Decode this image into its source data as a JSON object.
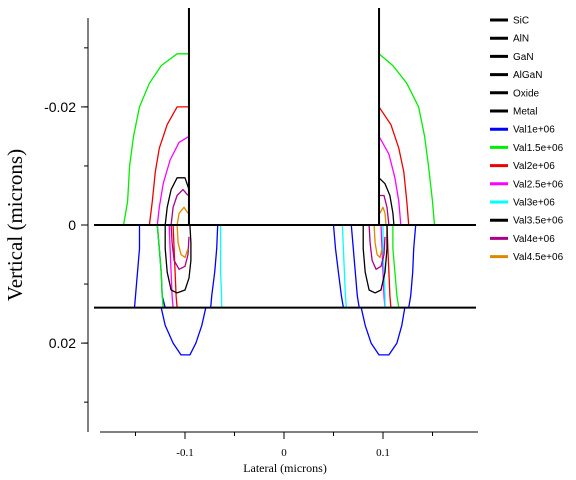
{
  "chart_data": {
    "type": "line",
    "title": "",
    "xlabel": "Lateral (microns)",
    "ylabel": "Vertical (microns)",
    "xlim": [
      -0.2,
      0.2
    ],
    "ylim": [
      -0.035,
      0.032
    ],
    "y_inverted": true,
    "grid": false,
    "legend_position": "right",
    "x_ticks": [
      {
        "v": -0.1,
        "label": "-0.1"
      },
      {
        "v": 0,
        "label": "0"
      },
      {
        "v": 0.1,
        "label": "0.1"
      }
    ],
    "y_ticks": [
      {
        "v": -0.02,
        "label": "-0.02"
      },
      {
        "v": 0,
        "label": "0"
      },
      {
        "v": 0.02,
        "label": "0.02"
      }
    ],
    "material_lines": {
      "horizontal_y": [
        0,
        0.014
      ],
      "metal_x": [
        -0.096,
        0.096
      ],
      "metal_y_top": -0.036
    },
    "legend": [
      {
        "label": "SiC",
        "color": "#000000"
      },
      {
        "label": "AlN",
        "color": "#000000"
      },
      {
        "label": "GaN",
        "color": "#000000"
      },
      {
        "label": "AlGaN",
        "color": "#000000"
      },
      {
        "label": "Oxide",
        "color": "#000000"
      },
      {
        "label": "Metal",
        "color": "#000000"
      },
      {
        "label": "Val1e+06",
        "color": "#0000ff"
      },
      {
        "label": "Val1.5e+06",
        "color": "#00ee00"
      },
      {
        "label": "Val2e+06",
        "color": "#ee0000"
      },
      {
        "label": "Val2.5e+06",
        "color": "#ff00ff"
      },
      {
        "label": "Val3e+06",
        "color": "#00ffff"
      },
      {
        "label": "Val3.5e+06",
        "color": "#000000"
      },
      {
        "label": "Val4e+06",
        "color": "#aa0088"
      },
      {
        "label": "Val4.5e+06",
        "color": "#dd8800"
      }
    ],
    "series": [
      {
        "name": "Val1e+06",
        "color": "#0000ff",
        "width": 1.3,
        "segments": [
          [
            [
              -0.146,
              0.0
            ],
            [
              -0.146,
              0.004
            ],
            [
              -0.148,
              0.008
            ],
            [
              -0.15,
              0.012
            ],
            [
              -0.151,
              0.014
            ]
          ],
          [
            [
              -0.128,
              0.0
            ],
            [
              -0.126,
              0.004
            ],
            [
              -0.124,
              0.008
            ],
            [
              -0.123,
              0.012
            ],
            [
              -0.12,
              0.014
            ]
          ],
          [
            [
              -0.124,
              0.014
            ],
            [
              -0.12,
              0.017
            ],
            [
              -0.112,
              0.02
            ],
            [
              -0.104,
              0.022
            ],
            [
              -0.095,
              0.022
            ],
            [
              -0.089,
              0.02
            ],
            [
              -0.083,
              0.017
            ],
            [
              -0.079,
              0.014
            ]
          ],
          [
            [
              -0.074,
              0.014
            ],
            [
              -0.073,
              0.012
            ],
            [
              -0.07,
              0.008
            ],
            [
              -0.068,
              0.004
            ],
            [
              -0.067,
              0.0
            ]
          ],
          [
            [
              0.05,
              0.0
            ],
            [
              0.052,
              0.004
            ],
            [
              0.055,
              0.008
            ],
            [
              0.058,
              0.012
            ],
            [
              0.06,
              0.014
            ]
          ],
          [
            [
              0.068,
              0.0
            ],
            [
              0.07,
              0.004
            ],
            [
              0.072,
              0.008
            ],
            [
              0.074,
              0.012
            ],
            [
              0.076,
              0.014
            ]
          ],
          [
            [
              0.078,
              0.014
            ],
            [
              0.082,
              0.017
            ],
            [
              0.088,
              0.02
            ],
            [
              0.096,
              0.022
            ],
            [
              0.106,
              0.022
            ],
            [
              0.114,
              0.02
            ],
            [
              0.119,
              0.017
            ],
            [
              0.122,
              0.014
            ]
          ],
          [
            [
              0.126,
              0.014
            ],
            [
              0.128,
              0.012
            ],
            [
              0.13,
              0.008
            ],
            [
              0.131,
              0.004
            ],
            [
              0.133,
              0.0
            ]
          ]
        ]
      },
      {
        "name": "Val1.5e+06",
        "color": "#00ee00",
        "width": 1.3,
        "segments": [
          [
            [
              -0.162,
              0.0
            ],
            [
              -0.158,
              -0.004
            ],
            [
              -0.156,
              -0.01
            ],
            [
              -0.152,
              -0.015
            ],
            [
              -0.146,
              -0.02
            ],
            [
              -0.136,
              -0.024
            ],
            [
              -0.124,
              -0.027
            ],
            [
              -0.108,
              -0.029
            ],
            [
              -0.096,
              -0.029
            ]
          ],
          [
            [
              -0.128,
              0.0
            ],
            [
              -0.126,
              0.004
            ],
            [
              -0.124,
              0.008
            ],
            [
              -0.123,
              0.012
            ],
            [
              -0.122,
              0.014
            ]
          ],
          [
            [
              0.096,
              -0.029
            ],
            [
              0.11,
              -0.027
            ],
            [
              0.124,
              -0.024
            ],
            [
              0.136,
              -0.02
            ],
            [
              0.142,
              -0.015
            ],
            [
              0.146,
              -0.01
            ],
            [
              0.15,
              -0.004
            ],
            [
              0.152,
              0.0
            ]
          ],
          [
            [
              0.11,
              0.0
            ],
            [
              0.11,
              0.004
            ],
            [
              0.112,
              0.008
            ],
            [
              0.114,
              0.012
            ],
            [
              0.116,
              0.014
            ]
          ]
        ]
      },
      {
        "name": "Val2e+06",
        "color": "#ee0000",
        "width": 1.3,
        "segments": [
          [
            [
              -0.136,
              0.0
            ],
            [
              -0.133,
              -0.004
            ],
            [
              -0.13,
              -0.009
            ],
            [
              -0.126,
              -0.013
            ],
            [
              -0.118,
              -0.017
            ],
            [
              -0.108,
              -0.02
            ],
            [
              -0.096,
              -0.02
            ]
          ],
          [
            [
              -0.112,
              0.0
            ],
            [
              -0.111,
              0.004
            ],
            [
              -0.11,
              0.008
            ],
            [
              -0.109,
              0.012
            ],
            [
              -0.108,
              0.014
            ]
          ],
          [
            [
              0.096,
              -0.02
            ],
            [
              0.108,
              -0.017
            ],
            [
              0.116,
              -0.013
            ],
            [
              0.121,
              -0.009
            ],
            [
              0.124,
              -0.004
            ],
            [
              0.126,
              0.0
            ]
          ],
          [
            [
              0.104,
              0.0
            ],
            [
              0.105,
              0.004
            ],
            [
              0.106,
              0.008
            ],
            [
              0.107,
              0.012
            ],
            [
              0.108,
              0.014
            ]
          ]
        ]
      },
      {
        "name": "Val2.5e+06",
        "color": "#ff00ff",
        "width": 1.3,
        "segments": [
          [
            [
              -0.128,
              0.0
            ],
            [
              -0.126,
              -0.003
            ],
            [
              -0.122,
              -0.007
            ],
            [
              -0.115,
              -0.011
            ],
            [
              -0.106,
              -0.014
            ],
            [
              -0.096,
              -0.015
            ]
          ],
          [
            [
              -0.116,
              0.0
            ],
            [
              -0.115,
              0.004
            ],
            [
              -0.114,
              0.008
            ],
            [
              -0.113,
              0.012
            ],
            [
              -0.112,
              0.014
            ]
          ],
          [
            [
              0.096,
              -0.015
            ],
            [
              0.106,
              -0.012
            ],
            [
              0.112,
              -0.008
            ],
            [
              0.116,
              -0.004
            ],
            [
              0.118,
              0.0
            ]
          ],
          [
            [
              0.098,
              0.0
            ],
            [
              0.099,
              0.004
            ],
            [
              0.1,
              0.008
            ],
            [
              0.101,
              0.012
            ],
            [
              0.102,
              0.014
            ]
          ]
        ]
      },
      {
        "name": "Val3e+06",
        "color": "#00ffff",
        "width": 1.3,
        "segments": [
          [
            [
              -0.064,
              0.0
            ],
            [
              -0.064,
              0.004
            ],
            [
              -0.064,
              0.008
            ],
            [
              -0.063,
              0.012
            ],
            [
              -0.063,
              0.014
            ]
          ],
          [
            [
              0.059,
              0.0
            ],
            [
              0.06,
              0.004
            ],
            [
              0.061,
              0.008
            ],
            [
              0.062,
              0.012
            ],
            [
              0.063,
              0.014
            ]
          ],
          [
            [
              0.1,
              0.0
            ],
            [
              0.1,
              0.004
            ],
            [
              0.101,
              0.008
            ],
            [
              0.102,
              0.012
            ],
            [
              0.102,
              0.014
            ]
          ]
        ]
      },
      {
        "name": "Val3.5e+06",
        "color": "#000000",
        "width": 1.3,
        "segments": [
          [
            [
              -0.12,
              0.0
            ],
            [
              -0.118,
              -0.003
            ],
            [
              -0.114,
              -0.006
            ],
            [
              -0.108,
              -0.008
            ],
            [
              -0.1,
              -0.008
            ],
            [
              -0.096,
              -0.006
            ]
          ],
          [
            [
              -0.12,
              0.0
            ],
            [
              -0.12,
              0.004
            ],
            [
              -0.118,
              0.008
            ],
            [
              -0.114,
              0.011
            ],
            [
              -0.108,
              0.0115
            ],
            [
              -0.1,
              0.011
            ],
            [
              -0.096,
              0.009
            ],
            [
              -0.094,
              0.006
            ],
            [
              -0.094,
              0.003
            ],
            [
              -0.095,
              0.0
            ]
          ],
          [
            [
              0.096,
              -0.008
            ],
            [
              0.102,
              -0.007
            ],
            [
              0.107,
              -0.005
            ],
            [
              0.11,
              -0.002
            ],
            [
              0.111,
              0.0
            ]
          ],
          [
            [
              0.08,
              0.0
            ],
            [
              0.08,
              0.004
            ],
            [
              0.082,
              0.008
            ],
            [
              0.086,
              0.011
            ],
            [
              0.092,
              0.0115
            ],
            [
              0.098,
              0.011
            ],
            [
              0.102,
              0.008
            ],
            [
              0.104,
              0.004
            ],
            [
              0.104,
              0.0
            ]
          ]
        ]
      },
      {
        "name": "Val4e+06",
        "color": "#aa0088",
        "width": 1.3,
        "segments": [
          [
            [
              -0.114,
              0.0
            ],
            [
              -0.112,
              -0.003
            ],
            [
              -0.108,
              -0.005
            ],
            [
              -0.102,
              -0.006
            ],
            [
              -0.097,
              -0.005
            ]
          ],
          [
            [
              -0.114,
              0.0
            ],
            [
              -0.113,
              0.003
            ],
            [
              -0.111,
              0.006
            ],
            [
              -0.106,
              0.0075
            ],
            [
              -0.1,
              0.007
            ],
            [
              -0.097,
              0.005
            ],
            [
              -0.096,
              0.002
            ]
          ],
          [
            [
              0.097,
              -0.005
            ],
            [
              0.101,
              -0.005
            ],
            [
              0.104,
              -0.003
            ],
            [
              0.106,
              0.0
            ]
          ],
          [
            [
              0.086,
              0.0
            ],
            [
              0.087,
              0.003
            ],
            [
              0.089,
              0.006
            ],
            [
              0.093,
              0.0075
            ],
            [
              0.098,
              0.007
            ],
            [
              0.101,
              0.005
            ],
            [
              0.102,
              0.002
            ]
          ]
        ]
      },
      {
        "name": "Val4.5e+06",
        "color": "#dd8800",
        "width": 1.3,
        "segments": [
          [
            [
              -0.108,
              0.0
            ],
            [
              -0.106,
              -0.002
            ],
            [
              -0.101,
              -0.003
            ],
            [
              -0.097,
              -0.002
            ]
          ],
          [
            [
              -0.108,
              0.0
            ],
            [
              -0.107,
              0.003
            ],
            [
              -0.104,
              0.005
            ],
            [
              -0.1,
              0.0055
            ],
            [
              -0.097,
              0.004
            ]
          ],
          [
            [
              0.097,
              -0.002
            ],
            [
              0.1,
              -0.003
            ],
            [
              0.102,
              -0.002
            ],
            [
              0.103,
              0.0
            ]
          ],
          [
            [
              0.091,
              0.0
            ],
            [
              0.092,
              0.003
            ],
            [
              0.094,
              0.005
            ],
            [
              0.097,
              0.0055
            ],
            [
              0.099,
              0.004
            ]
          ]
        ]
      }
    ]
  }
}
